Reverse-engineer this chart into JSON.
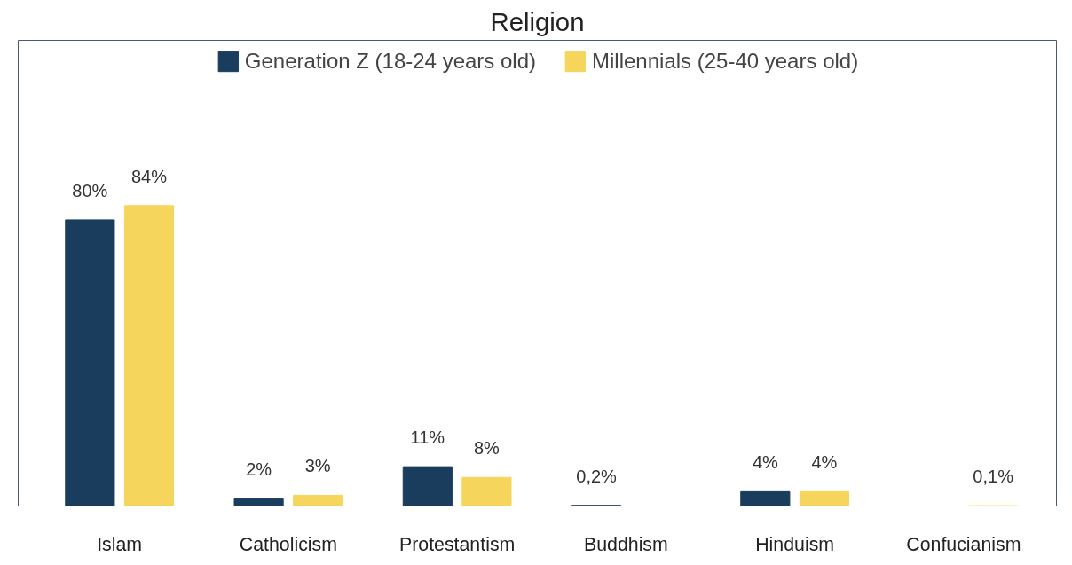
{
  "chart_data": {
    "type": "bar",
    "title": "Religion",
    "categories": [
      "Islam",
      "Catholicism",
      "Protestantism",
      "Buddhism",
      "Hinduism",
      "Confucianism"
    ],
    "series": [
      {
        "name": "Generation Z (18-24 years old)",
        "color": "#1a3d5e",
        "values": [
          80,
          2,
          11,
          0.2,
          4,
          null
        ],
        "value_labels": [
          "80%",
          "2%",
          "11%",
          "0,2%",
          "4%",
          null
        ]
      },
      {
        "name": "Millennials (25-40 years old)",
        "color": "#f5d55c",
        "values": [
          84,
          3,
          8,
          null,
          4,
          0.1
        ],
        "value_labels": [
          "84%",
          "3%",
          "8%",
          null,
          "4%",
          "0,1%"
        ]
      }
    ],
    "legend": "top",
    "grid": false
  }
}
